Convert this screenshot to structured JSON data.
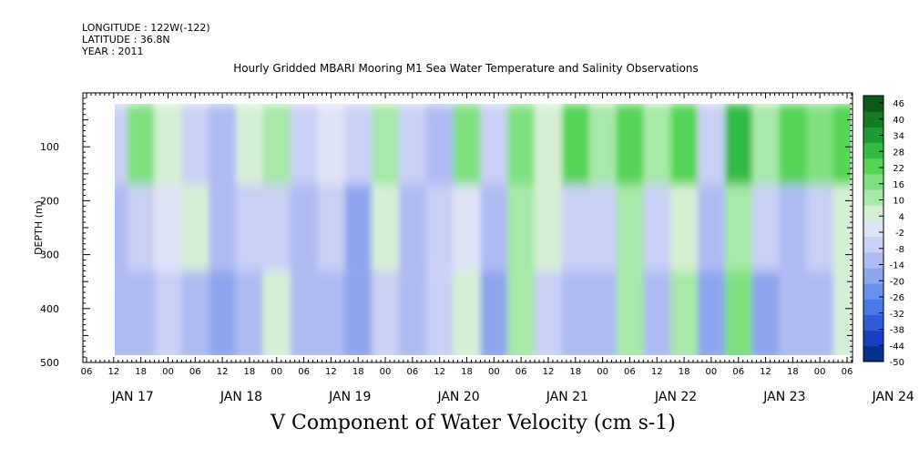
{
  "header": {
    "longitude": "LONGITUDE : 122W(-122)",
    "latitude": "LATITUDE : 36.8N",
    "year": "YEAR : 2011"
  },
  "chart_data": {
    "type": "heatmap",
    "title": "Hourly Gridded MBARI Mooring M1 Sea Water Temperature and Salinity Observations",
    "xlabel": "V Component of Water Velocity (cm s-1)",
    "ylabel": "DEPTH (m)",
    "y_ticks": [
      "100",
      "200",
      "300",
      "400",
      "500"
    ],
    "ylim": [
      500,
      0
    ],
    "x_hour_ticks": [
      "06",
      "12",
      "18",
      "00",
      "06",
      "12",
      "18",
      "00",
      "06",
      "12",
      "18",
      "00",
      "06",
      "12",
      "18",
      "00",
      "06",
      "12",
      "18",
      "00",
      "06",
      "12",
      "18",
      "00",
      "06",
      "12",
      "18",
      "00",
      "06"
    ],
    "x_day_labels": [
      "JAN 17",
      "JAN 18",
      "JAN 19",
      "JAN 20",
      "JAN 21",
      "JAN 22",
      "JAN 23",
      "JAN 24"
    ],
    "colorbar": {
      "levels": [
        "46",
        "40",
        "34",
        "28",
        "22",
        "16",
        "10",
        "4",
        "-2",
        "-8",
        "-14",
        "-20",
        "-26",
        "-32",
        "-38",
        "-44",
        "-50"
      ],
      "min": -50,
      "max": 50,
      "colors": [
        "#062e8c",
        "#1a3ec0",
        "#2f5ad8",
        "#4a78e6",
        "#6a90ea",
        "#8ea6ee",
        "#aebbf2",
        "#c9d0f5",
        "#dfe3f8",
        "#d4f0d4",
        "#a8e8a8",
        "#7fe07f",
        "#55d455",
        "#33bb44",
        "#1e9a33",
        "#157a26",
        "#0c5a1a"
      ]
    },
    "series_description": "Alternating northward (green, positive) and southward (blue, negative) velocity bands through depth 20–490 m from JAN 17 12h to JAN 24 06h",
    "columns": [
      {
        "time": "JAN 17 12",
        "surface": -8,
        "mid": -14,
        "deep": -14
      },
      {
        "time": "JAN 17 18",
        "surface": 16,
        "mid": -8,
        "deep": -14
      },
      {
        "time": "JAN 18 00",
        "surface": 4,
        "mid": -2,
        "deep": -8
      },
      {
        "time": "JAN 18 06",
        "surface": -8,
        "mid": 4,
        "deep": -14
      },
      {
        "time": "JAN 18 12",
        "surface": -14,
        "mid": -14,
        "deep": -20
      },
      {
        "time": "JAN 18 18",
        "surface": 4,
        "mid": -8,
        "deep": -14
      },
      {
        "time": "JAN 19 00",
        "surface": 10,
        "mid": -8,
        "deep": 4
      },
      {
        "time": "JAN 19 06",
        "surface": -8,
        "mid": -14,
        "deep": -14
      },
      {
        "time": "JAN 19 12",
        "surface": -2,
        "mid": -8,
        "deep": -14
      },
      {
        "time": "JAN 19 18",
        "surface": -8,
        "mid": -20,
        "deep": -20
      },
      {
        "time": "JAN 20 00",
        "surface": 10,
        "mid": 4,
        "deep": -8
      },
      {
        "time": "JAN 20 06",
        "surface": -8,
        "mid": -14,
        "deep": -14
      },
      {
        "time": "JAN 20 12",
        "surface": -14,
        "mid": -8,
        "deep": -8
      },
      {
        "time": "JAN 20 18",
        "surface": 16,
        "mid": -2,
        "deep": 4
      },
      {
        "time": "JAN 21 00",
        "surface": -8,
        "mid": -14,
        "deep": -20
      },
      {
        "time": "JAN 21 06",
        "surface": 16,
        "mid": 10,
        "deep": 10
      },
      {
        "time": "JAN 21 12",
        "surface": 4,
        "mid": 4,
        "deep": -8
      },
      {
        "time": "JAN 21 18",
        "surface": 22,
        "mid": -8,
        "deep": -14
      },
      {
        "time": "JAN 22 00",
        "surface": 10,
        "mid": -8,
        "deep": -14
      },
      {
        "time": "JAN 22 06",
        "surface": 22,
        "mid": 10,
        "deep": 10
      },
      {
        "time": "JAN 22 12",
        "surface": 10,
        "mid": -8,
        "deep": -14
      },
      {
        "time": "JAN 22 18",
        "surface": 22,
        "mid": 4,
        "deep": 10
      },
      {
        "time": "JAN 23 00",
        "surface": -8,
        "mid": -14,
        "deep": -20
      },
      {
        "time": "JAN 23 06",
        "surface": 28,
        "mid": 10,
        "deep": 16
      },
      {
        "time": "JAN 23 12",
        "surface": 10,
        "mid": -8,
        "deep": -20
      },
      {
        "time": "JAN 23 18",
        "surface": 22,
        "mid": -14,
        "deep": -14
      },
      {
        "time": "JAN 24 00",
        "surface": 16,
        "mid": -8,
        "deep": -14
      },
      {
        "time": "JAN 24 06",
        "surface": 22,
        "mid": 4,
        "deep": 4
      }
    ]
  }
}
